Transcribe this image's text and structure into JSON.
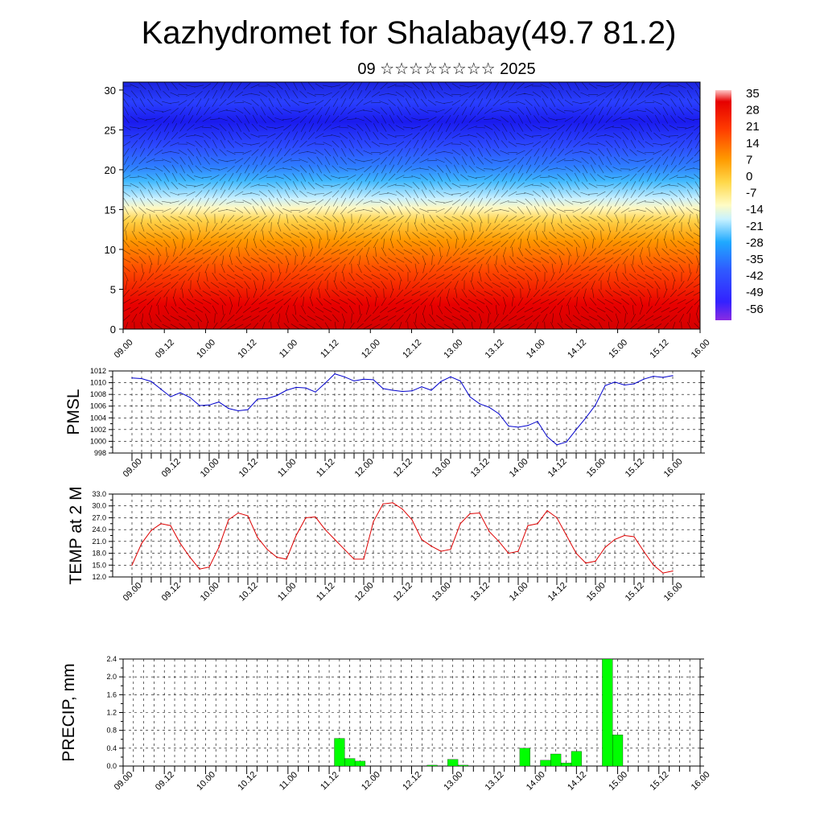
{
  "title": "Kazhydromet for Shalabay(49.7 81.2)",
  "subtitle": "09 ☆☆☆☆☆☆☆☆ 2025",
  "colors": {
    "pmsl_line": "#0000cc",
    "temp_line": "#dd0000",
    "precip_bar": "#00ff00",
    "precip_bar_edge": "#000000"
  },
  "chart_data": [
    {
      "type": "heatmap",
      "name": "vertical cross-section",
      "ylim": [
        0,
        31
      ],
      "yticks": [
        "0",
        "5",
        "10",
        "15",
        "20",
        "25",
        "30"
      ],
      "xticks": [
        "09.00",
        "09.12",
        "10.00",
        "10.12",
        "11.00",
        "11.12",
        "12.00",
        "12.12",
        "13.00",
        "13.12",
        "14.00",
        "14.12",
        "15.00",
        "15.12",
        "16.00"
      ],
      "colorbar_labels": [
        "35",
        "28",
        "21",
        "14",
        "7",
        "0",
        "-7",
        "-14",
        "-21",
        "-28",
        "-35",
        "-42",
        "-49",
        "-56"
      ],
      "colormap": [
        "#8a2be2",
        "#3322ff",
        "#2f5bff",
        "#1fa9ff",
        "#9fe3ff",
        "#fffcc4",
        "#ffd84a",
        "#ffa500",
        "#ff5a00",
        "#e60000",
        "#c40000",
        "#ffc0c0"
      ],
      "wind_arrows": true
    },
    {
      "type": "line",
      "ylabel": "PMSL",
      "ylim": [
        998,
        1012
      ],
      "yticks": [
        "998",
        "1000",
        "1002",
        "1004",
        "1006",
        "1008",
        "1010",
        "1012"
      ],
      "xticks": [
        "09.00",
        "09.12",
        "10.00",
        "10.12",
        "11.00",
        "11.12",
        "12.00",
        "12.12",
        "13.00",
        "13.12",
        "14.00",
        "14.12",
        "15.00",
        "15.12",
        "16.00"
      ],
      "x_hours": [
        0,
        3,
        6,
        9,
        12,
        15,
        18,
        21,
        24,
        27,
        30,
        33,
        36,
        39,
        42,
        45,
        48,
        51,
        54,
        57,
        60,
        63,
        66,
        69,
        72,
        75,
        78,
        81,
        84,
        87,
        90,
        93,
        96,
        99,
        102,
        105,
        108,
        111,
        114,
        117,
        120,
        123,
        126,
        129,
        132,
        135,
        138,
        141,
        144,
        147,
        150,
        153,
        156,
        159,
        162,
        165,
        168
      ],
      "values": [
        1010.8,
        1010.7,
        1010.2,
        1008.9,
        1007.6,
        1008.3,
        1007.5,
        1006.1,
        1006.2,
        1006.7,
        1005.6,
        1005.2,
        1005.4,
        1007.2,
        1007.3,
        1007.8,
        1008.7,
        1009.2,
        1009.1,
        1008.4,
        1009.9,
        1011.5,
        1011.0,
        1010.3,
        1010.6,
        1010.5,
        1009.0,
        1008.7,
        1008.5,
        1008.6,
        1009.3,
        1008.7,
        1010.2,
        1011.0,
        1010.3,
        1007.6,
        1006.4,
        1005.8,
        1004.7,
        1002.6,
        1002.4,
        1002.7,
        1003.4,
        1000.8,
        999.4,
        999.9,
        1002.0,
        1004.0,
        1006.2,
        1009.5,
        1010.1,
        1009.6,
        1009.8,
        1010.6,
        1011.1,
        1010.9,
        1011.2
      ],
      "grid": true
    },
    {
      "type": "line",
      "ylabel": "TEMP at 2 M",
      "ylim": [
        12,
        33
      ],
      "yticks": [
        "12.0",
        "15.0",
        "18.0",
        "21.0",
        "24.0",
        "27.0",
        "30.0",
        "33.0"
      ],
      "xticks": [
        "09.00",
        "09.12",
        "10.00",
        "10.12",
        "11.00",
        "11.12",
        "12.00",
        "12.12",
        "13.00",
        "13.12",
        "14.00",
        "14.12",
        "15.00",
        "15.12",
        "16.00"
      ],
      "x_hours": [
        0,
        3,
        6,
        9,
        12,
        15,
        18,
        21,
        24,
        27,
        30,
        33,
        36,
        39,
        42,
        45,
        48,
        51,
        54,
        57,
        60,
        63,
        66,
        69,
        72,
        75,
        78,
        81,
        84,
        87,
        90,
        93,
        96,
        99,
        102,
        105,
        108,
        111,
        114,
        117,
        120,
        123,
        126,
        129,
        132,
        135,
        138,
        141,
        144,
        147,
        150,
        153,
        156,
        159,
        162,
        165,
        168
      ],
      "values": [
        15.0,
        20.5,
        23.8,
        25.5,
        25.0,
        20.5,
        17.0,
        14.0,
        14.5,
        19.5,
        26.5,
        28.2,
        27.5,
        22.0,
        19.0,
        17.0,
        16.5,
        22.5,
        27.0,
        27.2,
        24.0,
        21.5,
        19.0,
        16.5,
        16.5,
        26.0,
        30.5,
        30.8,
        29.2,
        26.5,
        21.5,
        19.8,
        18.5,
        19.0,
        25.5,
        28.0,
        28.2,
        23.5,
        21.0,
        18.0,
        18.5,
        25.0,
        25.5,
        28.8,
        27.0,
        22.5,
        18.0,
        15.5,
        16.0,
        19.5,
        21.5,
        22.5,
        22.2,
        18.5,
        15.0,
        13.0,
        13.5
      ],
      "grid": true
    },
    {
      "type": "bar",
      "ylabel": "PRECIP, mm",
      "ylim": [
        0,
        2.4
      ],
      "yticks": [
        "0.0",
        "0.4",
        "0.8",
        "1.2",
        "1.6",
        "2.0",
        "2.4"
      ],
      "xticks": [
        "09.00",
        "09.12",
        "10.00",
        "10.12",
        "11.00",
        "11.12",
        "12.00",
        "12.12",
        "13.00",
        "13.12",
        "14.00",
        "14.12",
        "15.00",
        "15.12",
        "16.00"
      ],
      "bars": [
        {
          "x_hours": 63,
          "value": 0.62
        },
        {
          "x_hours": 66,
          "value": 0.17
        },
        {
          "x_hours": 69,
          "value": 0.11
        },
        {
          "x_hours": 90,
          "value": 0.02
        },
        {
          "x_hours": 96,
          "value": 0.15
        },
        {
          "x_hours": 99,
          "value": 0.02
        },
        {
          "x_hours": 117,
          "value": 0.4
        },
        {
          "x_hours": 123,
          "value": 0.13
        },
        {
          "x_hours": 126,
          "value": 0.27
        },
        {
          "x_hours": 129,
          "value": 0.07
        },
        {
          "x_hours": 132,
          "value": 0.33
        },
        {
          "x_hours": 141,
          "value": 2.4
        },
        {
          "x_hours": 144,
          "value": 0.7
        }
      ],
      "grid": true
    }
  ]
}
